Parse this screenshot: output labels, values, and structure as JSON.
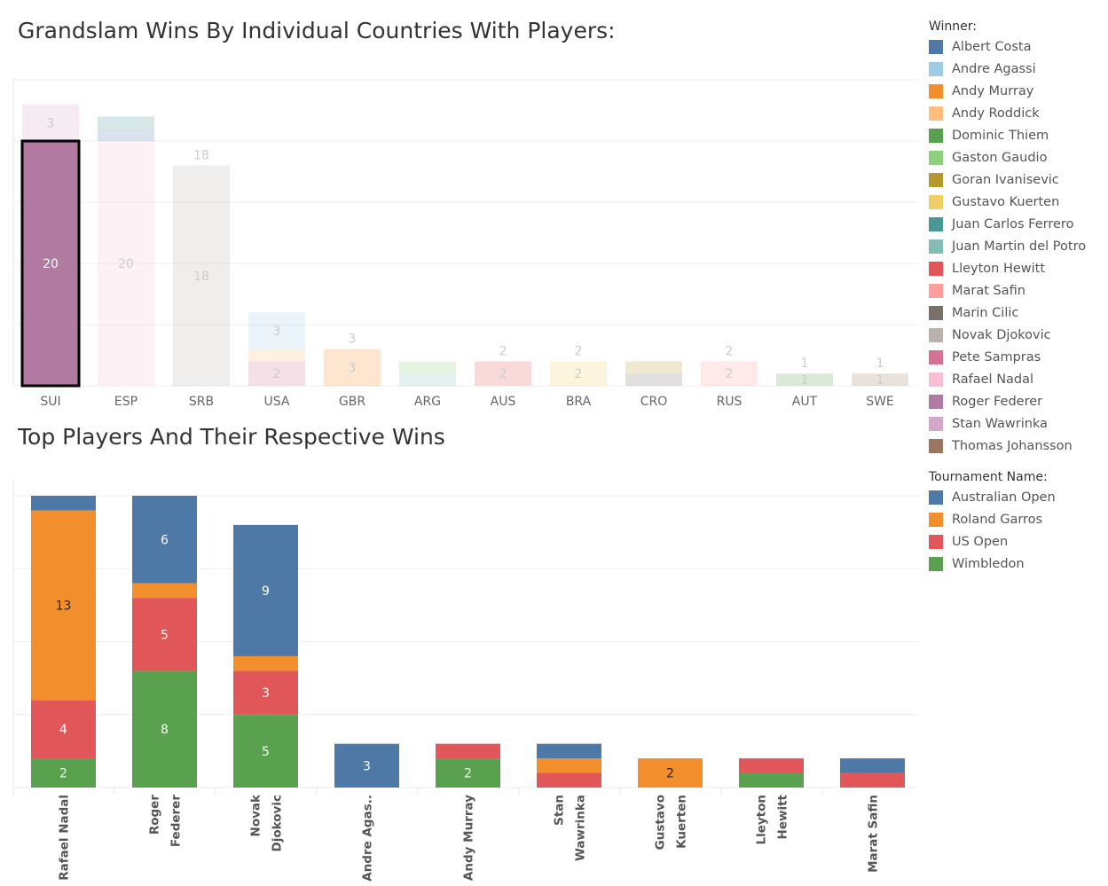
{
  "chart_data": [
    {
      "type": "bar",
      "title": "Grandslam Wins By Individual Countries With Players:",
      "stacked": true,
      "categories": [
        "SUI",
        "ESP",
        "SRB",
        "USA",
        "GBR",
        "ARG",
        "AUS",
        "BRA",
        "CRO",
        "RUS",
        "AUT",
        "SWE"
      ],
      "totals": [
        23,
        22,
        18,
        6,
        3,
        2,
        2,
        2,
        2,
        2,
        1,
        1
      ],
      "selected_series": "Roger Federer",
      "series": [
        {
          "name": "Roger Federer",
          "values": [
            20,
            0,
            0,
            0,
            0,
            0,
            0,
            0,
            0,
            0,
            0,
            0
          ],
          "label": "20"
        },
        {
          "name": "Stan Wawrinka",
          "values": [
            3,
            0,
            0,
            0,
            0,
            0,
            0,
            0,
            0,
            0,
            0,
            0
          ],
          "label": "3"
        },
        {
          "name": "Rafael Nadal",
          "values": [
            0,
            20,
            0,
            0,
            0,
            0,
            0,
            0,
            0,
            0,
            0,
            0
          ],
          "label": "20"
        },
        {
          "name": "Albert Costa",
          "values": [
            0,
            1,
            0,
            0,
            0,
            0,
            0,
            0,
            0,
            0,
            0,
            0
          ]
        },
        {
          "name": "Juan Carlos Ferrero",
          "values": [
            0,
            1,
            0,
            0,
            0,
            0,
            0,
            0,
            0,
            0,
            0,
            0
          ]
        },
        {
          "name": "Novak Djokovic",
          "values": [
            0,
            0,
            18,
            0,
            0,
            0,
            0,
            0,
            0,
            0,
            0,
            0
          ],
          "label": "18"
        },
        {
          "name": "Pete Sampras",
          "values": [
            0,
            0,
            0,
            2,
            0,
            0,
            0,
            0,
            0,
            0,
            0,
            0
          ],
          "label": "2"
        },
        {
          "name": "Andy Roddick",
          "values": [
            0,
            0,
            0,
            1,
            0,
            0,
            0,
            0,
            0,
            0,
            0,
            0
          ]
        },
        {
          "name": "Andre Agassi",
          "values": [
            0,
            0,
            0,
            3,
            0,
            0,
            0,
            0,
            0,
            0,
            0,
            0
          ],
          "label": "3"
        },
        {
          "name": "Andy Murray",
          "values": [
            0,
            0,
            0,
            0,
            3,
            0,
            0,
            0,
            0,
            0,
            0,
            0
          ],
          "label": "3"
        },
        {
          "name": "Juan Martin del Potro",
          "values": [
            0,
            0,
            0,
            0,
            0,
            1,
            0,
            0,
            0,
            0,
            0,
            0
          ]
        },
        {
          "name": "Gaston Gaudio",
          "values": [
            0,
            0,
            0,
            0,
            0,
            1,
            0,
            0,
            0,
            0,
            0,
            0
          ]
        },
        {
          "name": "Lleyton Hewitt",
          "values": [
            0,
            0,
            0,
            0,
            0,
            0,
            2,
            0,
            0,
            0,
            0,
            0
          ],
          "label": "2"
        },
        {
          "name": "Gustavo Kuerten",
          "values": [
            0,
            0,
            0,
            0,
            0,
            0,
            0,
            2,
            0,
            0,
            0,
            0
          ],
          "label": "2"
        },
        {
          "name": "Marin Cilic",
          "values": [
            0,
            0,
            0,
            0,
            0,
            0,
            0,
            0,
            1,
            0,
            0,
            0
          ]
        },
        {
          "name": "Goran Ivanisevic",
          "values": [
            0,
            0,
            0,
            0,
            0,
            0,
            0,
            0,
            1,
            0,
            0,
            0
          ]
        },
        {
          "name": "Marat Safin",
          "values": [
            0,
            0,
            0,
            0,
            0,
            0,
            0,
            0,
            0,
            2,
            0,
            0
          ],
          "label": "2"
        },
        {
          "name": "Dominic Thiem",
          "values": [
            0,
            0,
            0,
            0,
            0,
            0,
            0,
            0,
            0,
            0,
            1,
            0
          ],
          "label": "1"
        },
        {
          "name": "Thomas Johansson",
          "values": [
            0,
            0,
            0,
            0,
            0,
            0,
            0,
            0,
            0,
            0,
            0,
            1
          ],
          "label": "1"
        }
      ],
      "ylim": [
        0,
        25
      ],
      "grid": true
    },
    {
      "type": "bar",
      "title": "Top Players And Their Respective Wins",
      "stacked": true,
      "categories": [
        "Rafael Nadal",
        "Roger Federer",
        "Novak Djokovic",
        "Andre Agas..",
        "Andy Murray",
        "Stan Wawrinka",
        "Gustavo Kuerten",
        "Lleyton Hewitt",
        "Marat Safin"
      ],
      "series": [
        {
          "name": "Wimbledon",
          "values": [
            2,
            8,
            5,
            0,
            2,
            0,
            0,
            1,
            0
          ],
          "labels": [
            "2",
            "8",
            "5",
            "",
            "2",
            "",
            "",
            "",
            ""
          ]
        },
        {
          "name": "US Open",
          "values": [
            4,
            5,
            3,
            0,
            1,
            1,
            0,
            1,
            1
          ],
          "labels": [
            "4",
            "5",
            "3",
            "",
            "",
            "",
            "",
            "",
            ""
          ]
        },
        {
          "name": "Roland Garros",
          "values": [
            13,
            1,
            1,
            0,
            0,
            1,
            2,
            0,
            0
          ],
          "labels": [
            "13",
            "",
            "",
            "",
            "",
            "",
            "2",
            "",
            ""
          ]
        },
        {
          "name": "Australian Open",
          "values": [
            1,
            6,
            9,
            3,
            0,
            1,
            0,
            0,
            1
          ],
          "labels": [
            "",
            "6",
            "9",
            "3",
            "",
            "",
            "",
            "",
            ""
          ]
        }
      ],
      "ylim": [
        0,
        20
      ],
      "grid": true
    }
  ],
  "legend": {
    "winner_title": "Winner:",
    "winners": [
      {
        "name": "Albert Costa",
        "color": "#4e79a7"
      },
      {
        "name": "Andre Agassi",
        "color": "#a0cbe8"
      },
      {
        "name": "Andy Murray",
        "color": "#f28e2b"
      },
      {
        "name": "Andy Roddick",
        "color": "#ffbe7d"
      },
      {
        "name": "Dominic Thiem",
        "color": "#59a14f"
      },
      {
        "name": "Gaston Gaudio",
        "color": "#8cd17d"
      },
      {
        "name": "Goran Ivanisevic",
        "color": "#b6992d"
      },
      {
        "name": "Gustavo Kuerten",
        "color": "#f1ce63"
      },
      {
        "name": "Juan Carlos Ferrero",
        "color": "#499894"
      },
      {
        "name": "Juan Martin del Potro",
        "color": "#86bcb6"
      },
      {
        "name": "Lleyton Hewitt",
        "color": "#e15759"
      },
      {
        "name": "Marat Safin",
        "color": "#ff9d9a"
      },
      {
        "name": "Marin Cilic",
        "color": "#79706e"
      },
      {
        "name": "Novak Djokovic",
        "color": "#bab0ac"
      },
      {
        "name": "Pete Sampras",
        "color": "#d37295"
      },
      {
        "name": "Rafael Nadal",
        "color": "#fabfd2"
      },
      {
        "name": "Roger Federer",
        "color": "#b07aa1"
      },
      {
        "name": "Stan Wawrinka",
        "color": "#d4a6c8"
      },
      {
        "name": "Thomas Johansson",
        "color": "#9d7660"
      }
    ],
    "tournament_title": "Tournament Name:",
    "tournaments": [
      {
        "name": "Australian Open",
        "color": "#4e79a7"
      },
      {
        "name": "Roland Garros",
        "color": "#f28e2b"
      },
      {
        "name": "US Open",
        "color": "#e15759"
      },
      {
        "name": "Wimbledon",
        "color": "#59a14f"
      }
    ]
  }
}
